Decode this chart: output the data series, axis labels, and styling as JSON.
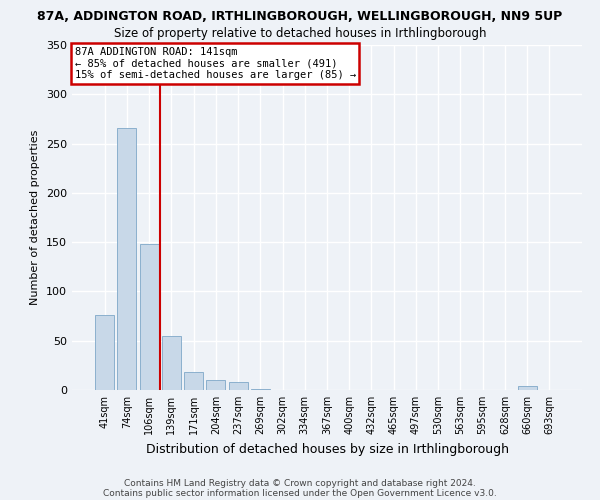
{
  "title": "87A, ADDINGTON ROAD, IRTHLINGBOROUGH, WELLINGBOROUGH, NN9 5UP",
  "subtitle": "Size of property relative to detached houses in Irthlingborough",
  "xlabel": "Distribution of detached houses by size in Irthlingborough",
  "ylabel": "Number of detached properties",
  "footnote1": "Contains HM Land Registry data © Crown copyright and database right 2024.",
  "footnote2": "Contains public sector information licensed under the Open Government Licence v3.0.",
  "categories": [
    "41sqm",
    "74sqm",
    "106sqm",
    "139sqm",
    "171sqm",
    "204sqm",
    "237sqm",
    "269sqm",
    "302sqm",
    "334sqm",
    "367sqm",
    "400sqm",
    "432sqm",
    "465sqm",
    "497sqm",
    "530sqm",
    "563sqm",
    "595sqm",
    "628sqm",
    "660sqm",
    "693sqm"
  ],
  "values": [
    76,
    266,
    148,
    55,
    18,
    10,
    8,
    1,
    0,
    0,
    0,
    0,
    0,
    0,
    0,
    0,
    0,
    0,
    0,
    4,
    0
  ],
  "bar_color": "#c8d8e8",
  "bar_edge_color": "#7fa8c8",
  "property_line_index": 3,
  "property_line_label": "87A ADDINGTON ROAD: 141sqm",
  "annotation_line1": "← 85% of detached houses are smaller (491)",
  "annotation_line2": "15% of semi-detached houses are larger (85) →",
  "annotation_box_facecolor": "#ffffff",
  "annotation_box_edgecolor": "#cc0000",
  "line_color": "#cc0000",
  "ylim": [
    0,
    350
  ],
  "yticks": [
    0,
    50,
    100,
    150,
    200,
    250,
    300,
    350
  ],
  "background_color": "#eef2f7",
  "grid_color": "#ffffff",
  "title_fontsize": 9,
  "subtitle_fontsize": 8.5,
  "ylabel_fontsize": 8,
  "xlabel_fontsize": 9,
  "tick_fontsize": 7,
  "footnote_fontsize": 6.5
}
